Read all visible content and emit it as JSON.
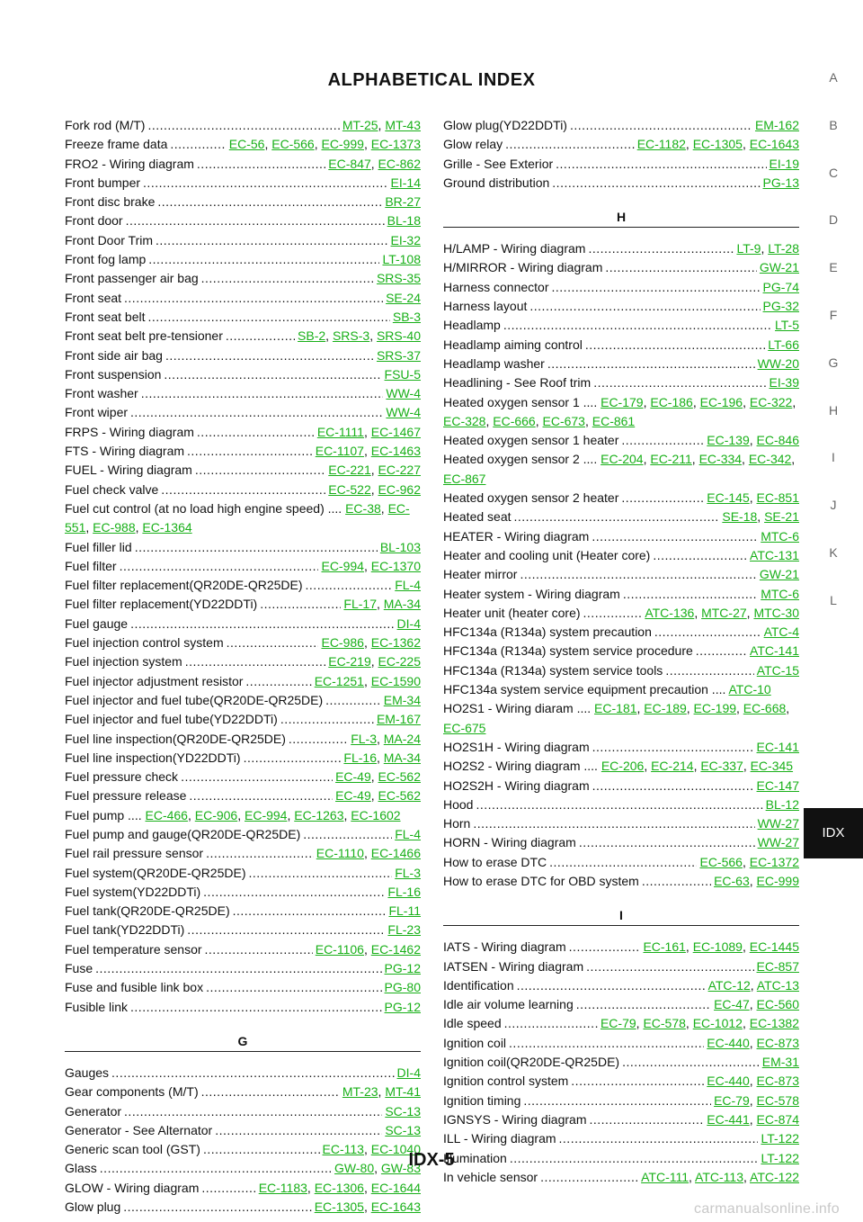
{
  "title": "ALPHABETICAL INDEX",
  "page_number": "IDX-5",
  "watermark": "carmanualsonline.info",
  "side_tabs": [
    "A",
    "B",
    "C",
    "D",
    "E",
    "F",
    "G",
    "H",
    "I",
    "J",
    "K",
    "L"
  ],
  "active_tab": "IDX",
  "left_column": [
    {
      "type": "entry",
      "name": "Fork rod (M/T)",
      "refs": [
        "MT-25",
        "MT-43"
      ]
    },
    {
      "type": "entry",
      "name": "Freeze frame data",
      "refs": [
        "EC-56",
        "EC-566",
        "EC-999",
        "EC-1373"
      ]
    },
    {
      "type": "entry",
      "name": "FRO2 - Wiring diagram",
      "refs": [
        "EC-847",
        "EC-862"
      ]
    },
    {
      "type": "entry",
      "name": "Front bumper",
      "refs": [
        "EI-14"
      ]
    },
    {
      "type": "entry",
      "name": "Front disc brake",
      "refs": [
        "BR-27"
      ]
    },
    {
      "type": "entry",
      "name": "Front door",
      "refs": [
        "BL-18"
      ]
    },
    {
      "type": "entry",
      "name": "Front Door Trim",
      "refs": [
        "EI-32"
      ]
    },
    {
      "type": "entry",
      "name": "Front fog lamp",
      "refs": [
        "LT-108"
      ]
    },
    {
      "type": "entry",
      "name": "Front passenger air bag",
      "refs": [
        "SRS-35"
      ]
    },
    {
      "type": "entry",
      "name": "Front seat",
      "refs": [
        "SE-24"
      ]
    },
    {
      "type": "entry",
      "name": "Front seat belt",
      "refs": [
        "SB-3"
      ]
    },
    {
      "type": "entry",
      "name": "Front seat belt pre-tensioner",
      "refs": [
        "SB-2",
        "SRS-3",
        "SRS-40"
      ]
    },
    {
      "type": "entry",
      "name": "Front side air bag",
      "refs": [
        "SRS-37"
      ]
    },
    {
      "type": "entry",
      "name": "Front suspension",
      "refs": [
        "FSU-5"
      ]
    },
    {
      "type": "entry",
      "name": "Front washer",
      "refs": [
        "WW-4"
      ]
    },
    {
      "type": "entry",
      "name": "Front wiper",
      "refs": [
        "WW-4"
      ]
    },
    {
      "type": "entry",
      "name": "FRPS - Wiring diagram",
      "refs": [
        "EC-1111",
        "EC-1467"
      ]
    },
    {
      "type": "entry",
      "name": "FTS - Wiring diagram",
      "refs": [
        "EC-1107",
        "EC-1463"
      ]
    },
    {
      "type": "entry",
      "name": "FUEL - Wiring diagram",
      "refs": [
        "EC-221",
        "EC-227"
      ]
    },
    {
      "type": "entry",
      "name": "Fuel check valve",
      "refs": [
        "EC-522",
        "EC-962"
      ]
    },
    {
      "type": "entry",
      "wrap": true,
      "name": "Fuel cut control (at no load high engine speed)",
      "refs": [
        "EC-38",
        "EC-551",
        "EC-988",
        "EC-1364"
      ]
    },
    {
      "type": "entry",
      "name": "Fuel filler lid",
      "refs": [
        "BL-103"
      ]
    },
    {
      "type": "entry",
      "name": "Fuel filter",
      "refs": [
        "EC-994",
        "EC-1370"
      ]
    },
    {
      "type": "entry",
      "name": "Fuel filter replacement(QR20DE-QR25DE)",
      "refs": [
        "FL-4"
      ]
    },
    {
      "type": "entry",
      "name": "Fuel filter replacement(YD22DDTi)",
      "refs": [
        "FL-17",
        "MA-34"
      ]
    },
    {
      "type": "entry",
      "name": "Fuel gauge",
      "refs": [
        "DI-4"
      ]
    },
    {
      "type": "entry",
      "name": "Fuel injection control system",
      "refs": [
        "EC-986",
        "EC-1362"
      ]
    },
    {
      "type": "entry",
      "name": "Fuel injection system",
      "refs": [
        "EC-219",
        "EC-225"
      ]
    },
    {
      "type": "entry",
      "name": "Fuel injector adjustment resistor",
      "refs": [
        "EC-1251",
        "EC-1590"
      ]
    },
    {
      "type": "entry",
      "name": "Fuel injector and fuel tube(QR20DE-QR25DE)",
      "refs": [
        "EM-34"
      ]
    },
    {
      "type": "entry",
      "name": "Fuel injector and fuel tube(YD22DDTi)",
      "refs": [
        "EM-167"
      ]
    },
    {
      "type": "entry",
      "name": "Fuel line inspection(QR20DE-QR25DE)",
      "refs": [
        "FL-3",
        "MA-24"
      ]
    },
    {
      "type": "entry",
      "name": "Fuel line inspection(YD22DDTi)",
      "refs": [
        "FL-16",
        "MA-34"
      ]
    },
    {
      "type": "entry",
      "name": "Fuel pressure check",
      "refs": [
        "EC-49",
        "EC-562"
      ]
    },
    {
      "type": "entry",
      "name": "Fuel pressure release",
      "refs": [
        "EC-49",
        "EC-562"
      ]
    },
    {
      "type": "entry",
      "wrap": true,
      "name": "Fuel pump",
      "refs": [
        "EC-466",
        "EC-906",
        "EC-994",
        "EC-1263",
        "EC-1602"
      ]
    },
    {
      "type": "entry",
      "name": "Fuel pump and gauge(QR20DE-QR25DE)",
      "refs": [
        "FL-4"
      ]
    },
    {
      "type": "entry",
      "name": "Fuel rail pressure sensor",
      "refs": [
        "EC-1110",
        "EC-1466"
      ]
    },
    {
      "type": "entry",
      "name": "Fuel system(QR20DE-QR25DE)",
      "refs": [
        "FL-3"
      ]
    },
    {
      "type": "entry",
      "name": "Fuel system(YD22DDTi)",
      "refs": [
        "FL-16"
      ]
    },
    {
      "type": "entry",
      "name": "Fuel tank(QR20DE-QR25DE)",
      "refs": [
        "FL-11"
      ]
    },
    {
      "type": "entry",
      "name": "Fuel tank(YD22DDTi)",
      "refs": [
        "FL-23"
      ]
    },
    {
      "type": "entry",
      "name": "Fuel temperature sensor",
      "refs": [
        "EC-1106",
        "EC-1462"
      ]
    },
    {
      "type": "entry",
      "name": "Fuse",
      "refs": [
        "PG-12"
      ]
    },
    {
      "type": "entry",
      "name": "Fuse and fusible link box",
      "refs": [
        "PG-80"
      ]
    },
    {
      "type": "entry",
      "name": "Fusible link",
      "refs": [
        "PG-12"
      ]
    },
    {
      "type": "section",
      "name": "G"
    },
    {
      "type": "entry",
      "name": "Gauges",
      "refs": [
        "DI-4"
      ]
    },
    {
      "type": "entry",
      "name": "Gear components (M/T)",
      "refs": [
        "MT-23",
        "MT-41"
      ]
    },
    {
      "type": "entry",
      "name": "Generator",
      "refs": [
        "SC-13"
      ]
    },
    {
      "type": "entry",
      "name": "Generator - See Alternator",
      "refs": [
        "SC-13"
      ]
    },
    {
      "type": "entry",
      "name": "Generic scan tool (GST)",
      "refs": [
        "EC-113",
        "EC-1040"
      ]
    },
    {
      "type": "entry",
      "name": "Glass",
      "refs": [
        "GW-80",
        "GW-83"
      ]
    },
    {
      "type": "entry",
      "name": "GLOW - Wiring diagram",
      "refs": [
        "EC-1183",
        "EC-1306",
        "EC-1644"
      ]
    },
    {
      "type": "entry",
      "name": "Glow plug",
      "refs": [
        "EC-1305",
        "EC-1643"
      ]
    }
  ],
  "right_column": [
    {
      "type": "entry",
      "name": "Glow plug(YD22DDTi)",
      "refs": [
        "EM-162"
      ]
    },
    {
      "type": "entry",
      "name": "Glow relay",
      "refs": [
        "EC-1182",
        "EC-1305",
        "EC-1643"
      ]
    },
    {
      "type": "entry",
      "name": "Grille - See Exterior",
      "refs": [
        "EI-19"
      ]
    },
    {
      "type": "entry",
      "name": "Ground distribution",
      "refs": [
        "PG-13"
      ]
    },
    {
      "type": "section",
      "name": "H"
    },
    {
      "type": "entry",
      "name": "H/LAMP - Wiring diagram",
      "refs": [
        "LT-9",
        "LT-28"
      ]
    },
    {
      "type": "entry",
      "name": "H/MIRROR - Wiring diagram",
      "refs": [
        "GW-21"
      ]
    },
    {
      "type": "entry",
      "name": "Harness connector",
      "refs": [
        "PG-74"
      ]
    },
    {
      "type": "entry",
      "name": "Harness layout",
      "refs": [
        "PG-32"
      ]
    },
    {
      "type": "entry",
      "name": "Headlamp",
      "refs": [
        "LT-5"
      ]
    },
    {
      "type": "entry",
      "name": "Headlamp aiming control",
      "refs": [
        "LT-66"
      ]
    },
    {
      "type": "entry",
      "name": "Headlamp washer",
      "refs": [
        "WW-20"
      ]
    },
    {
      "type": "entry",
      "name": "Headlining - See Roof trim",
      "refs": [
        "EI-39"
      ]
    },
    {
      "type": "entry",
      "wrap": true,
      "name": "Heated oxygen sensor 1",
      "refs": [
        "EC-179",
        "EC-186",
        "EC-196",
        "EC-322",
        "EC-328",
        "EC-666",
        "EC-673",
        "EC-861"
      ]
    },
    {
      "type": "entry",
      "name": "Heated oxygen sensor 1 heater",
      "refs": [
        "EC-139",
        "EC-846"
      ]
    },
    {
      "type": "entry",
      "wrap": true,
      "name": "Heated oxygen sensor 2",
      "refs": [
        "EC-204",
        "EC-211",
        "EC-334",
        "EC-342",
        "EC-867"
      ]
    },
    {
      "type": "entry",
      "name": "Heated oxygen sensor 2 heater",
      "refs": [
        "EC-145",
        "EC-851"
      ]
    },
    {
      "type": "entry",
      "name": "Heated seat",
      "refs": [
        "SE-18",
        "SE-21"
      ]
    },
    {
      "type": "entry",
      "name": "HEATER - Wiring diagram",
      "refs": [
        "MTC-6"
      ]
    },
    {
      "type": "entry",
      "name": "Heater and cooling unit (Heater core)",
      "refs": [
        "ATC-131"
      ]
    },
    {
      "type": "entry",
      "name": "Heater mirror",
      "refs": [
        "GW-21"
      ]
    },
    {
      "type": "entry",
      "name": "Heater system - Wiring diagram",
      "refs": [
        "MTC-6"
      ]
    },
    {
      "type": "entry",
      "name": "Heater unit (heater core)",
      "refs": [
        "ATC-136",
        "MTC-27",
        "MTC-30"
      ]
    },
    {
      "type": "entry",
      "name": "HFC134a (R134a) system precaution",
      "refs": [
        "ATC-4"
      ]
    },
    {
      "type": "entry",
      "name": "HFC134a (R134a) system service procedure",
      "refs": [
        "ATC-141"
      ]
    },
    {
      "type": "entry",
      "name": "HFC134a (R134a) system service tools",
      "refs": [
        "ATC-15"
      ]
    },
    {
      "type": "entry",
      "wrap": true,
      "name": "HFC134a system service equipment precaution",
      "refs": [
        "ATC-10"
      ]
    },
    {
      "type": "entry",
      "wrap": true,
      "name": "HO2S1 - Wiring diaram",
      "refs": [
        "EC-181",
        "EC-189",
        "EC-199",
        "EC-668",
        "EC-675"
      ]
    },
    {
      "type": "entry",
      "name": "HO2S1H - Wiring diagram",
      "refs": [
        "EC-141"
      ]
    },
    {
      "type": "entry",
      "wrap": true,
      "name": "HO2S2 - Wiring diagram",
      "refs": [
        "EC-206",
        "EC-214",
        "EC-337",
        "EC-345"
      ]
    },
    {
      "type": "entry",
      "name": "HO2S2H - Wiring diagram",
      "refs": [
        "EC-147"
      ]
    },
    {
      "type": "entry",
      "name": "Hood",
      "refs": [
        "BL-12"
      ]
    },
    {
      "type": "entry",
      "name": "Horn",
      "refs": [
        "WW-27"
      ]
    },
    {
      "type": "entry",
      "name": "HORN - Wiring diagram",
      "refs": [
        "WW-27"
      ]
    },
    {
      "type": "entry",
      "name": "How to erase DTC",
      "refs": [
        "EC-566",
        "EC-1372"
      ]
    },
    {
      "type": "entry",
      "name": "How to erase DTC for OBD system",
      "refs": [
        "EC-63",
        "EC-999"
      ]
    },
    {
      "type": "section",
      "name": "I"
    },
    {
      "type": "entry",
      "name": "IATS - Wiring diagram",
      "refs": [
        "EC-161",
        "EC-1089",
        "EC-1445"
      ]
    },
    {
      "type": "entry",
      "name": "IATSEN - Wiring diagram",
      "refs": [
        "EC-857"
      ]
    },
    {
      "type": "entry",
      "name": "Identification",
      "refs": [
        "ATC-12",
        "ATC-13"
      ]
    },
    {
      "type": "entry",
      "name": "Idle air volume learning",
      "refs": [
        "EC-47",
        "EC-560"
      ]
    },
    {
      "type": "entry",
      "name": "Idle speed",
      "refs": [
        "EC-79",
        "EC-578",
        "EC-1012",
        "EC-1382"
      ]
    },
    {
      "type": "entry",
      "name": "Ignition coil",
      "refs": [
        "EC-440",
        "EC-873"
      ]
    },
    {
      "type": "entry",
      "name": "Ignition coil(QR20DE-QR25DE)",
      "refs": [
        "EM-31"
      ]
    },
    {
      "type": "entry",
      "name": "Ignition control system",
      "refs": [
        "EC-440",
        "EC-873"
      ]
    },
    {
      "type": "entry",
      "name": "Ignition timing",
      "refs": [
        "EC-79",
        "EC-578"
      ]
    },
    {
      "type": "entry",
      "name": "IGNSYS - Wiring diagram",
      "refs": [
        "EC-441",
        "EC-874"
      ]
    },
    {
      "type": "entry",
      "name": "ILL - Wiring diagram",
      "refs": [
        "LT-122"
      ]
    },
    {
      "type": "entry",
      "name": "Illumination",
      "refs": [
        "LT-122"
      ]
    },
    {
      "type": "entry",
      "name": "In vehicle sensor",
      "refs": [
        "ATC-111",
        "ATC-113",
        "ATC-122"
      ]
    }
  ]
}
